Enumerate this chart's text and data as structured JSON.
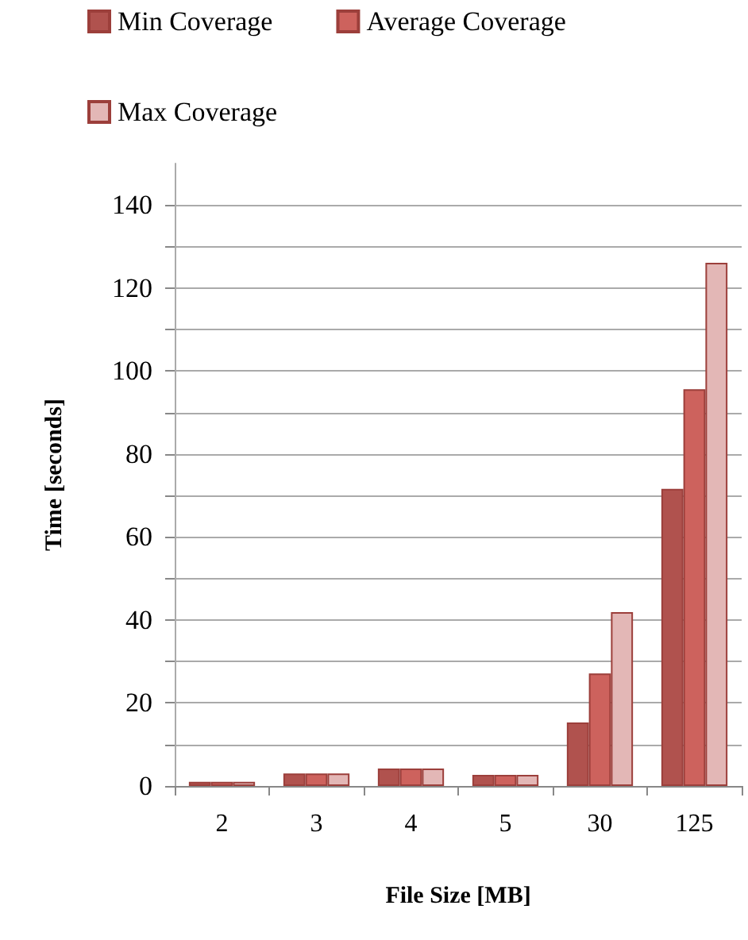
{
  "chart_data": {
    "type": "bar",
    "xlabel": "File Size [MB]",
    "ylabel": "Time [seconds]",
    "categories": [
      "2",
      "3",
      "4",
      "5",
      "30",
      "125"
    ],
    "series": [
      {
        "name": "Min Coverage",
        "color": "#b0524e",
        "values": [
          1.0,
          3.0,
          4.2,
          2.7,
          15.3,
          71.6
        ]
      },
      {
        "name": "Average Coverage",
        "color": "#cd625d",
        "values": [
          1.0,
          3.0,
          4.2,
          2.7,
          27.1,
          95.6
        ]
      },
      {
        "name": "Max Coverage",
        "color": "#e3b7b6",
        "values": [
          1.0,
          3.0,
          4.2,
          2.7,
          41.9,
          126.1
        ]
      }
    ],
    "ylim": [
      0,
      150
    ],
    "yticks": [
      0,
      {
        "value": 10,
        "label": null
      },
      20,
      {
        "value": 30,
        "label": null
      },
      40,
      {
        "value": 50,
        "label": null
      },
      60,
      {
        "value": 70,
        "label": null
      },
      80,
      {
        "value": 90,
        "label": null
      },
      100,
      {
        "value": 110,
        "label": null
      },
      120,
      {
        "value": 130,
        "label": null
      },
      140
    ],
    "grid": "y",
    "legend": "top"
  }
}
